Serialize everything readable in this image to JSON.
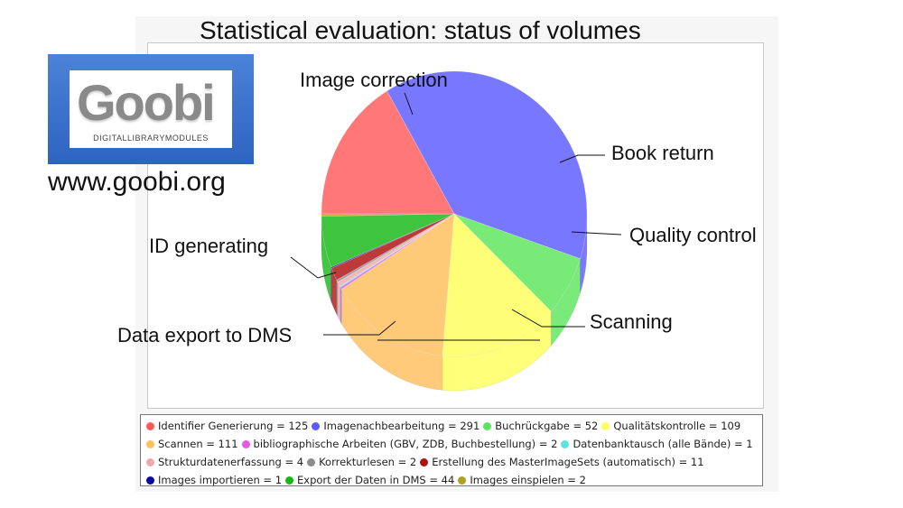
{
  "title": "Statistical evaluation: status of volumes",
  "logo": {
    "wordmark": "Goobi",
    "subtitle": "DIGITALLIBRARYMODULES",
    "url": "www.goobi.org"
  },
  "callouts": {
    "image_correction": "Image correction",
    "book_return": "Book return",
    "quality_control": "Quality control",
    "id_generating": "ID generating",
    "scanning": "Scanning",
    "data_export": "Data export to DMS"
  },
  "chart_data": {
    "type": "pie",
    "legend_position": "bottom",
    "slices": [
      {
        "label": "Identifier Generierung",
        "value": 125,
        "color": "#ff5a5a"
      },
      {
        "label": "Imagenachbearbeitung",
        "value": 291,
        "color": "#5a5aff"
      },
      {
        "label": "Buchrückgabe",
        "value": 52,
        "color": "#5ae65a"
      },
      {
        "label": "Qualitätskontrolle",
        "value": 109,
        "color": "#ffff5a"
      },
      {
        "label": "Scannen",
        "value": 111,
        "color": "#ffbf5a"
      },
      {
        "label": "bibliographische Arbeiten (GBV, ZDB, Buchbestellung)",
        "value": 2,
        "color": "#e55ae5"
      },
      {
        "label": "Datenbanktausch (alle Bände)",
        "value": 1,
        "color": "#5ae5e5"
      },
      {
        "label": "Strukturdatenerfassung",
        "value": 4,
        "color": "#f0a8a8"
      },
      {
        "label": "Korrekturlesen",
        "value": 2,
        "color": "#8c8c8c"
      },
      {
        "label": "Erstellung des MasterImageSets (automatisch)",
        "value": 11,
        "color": "#b01010"
      },
      {
        "label": "Images importieren",
        "value": 1,
        "color": "#0a0aa0"
      },
      {
        "label": "Export der Daten in DMS",
        "value": 44,
        "color": "#16b816"
      },
      {
        "label": "Images einspielen",
        "value": 2,
        "color": "#b0a020"
      }
    ],
    "legend_rows": [
      [
        0,
        1,
        2,
        3
      ],
      [
        4,
        5,
        6
      ],
      [
        7,
        8,
        9
      ],
      [
        10,
        11,
        12
      ]
    ]
  }
}
